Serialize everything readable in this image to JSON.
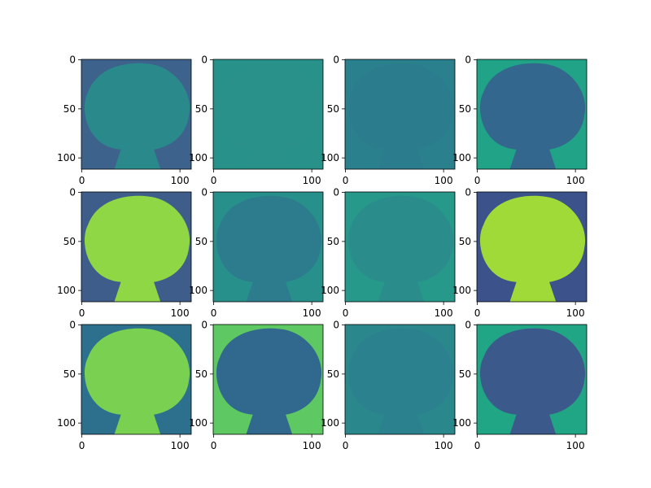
{
  "chart_data": [
    {
      "type": "image",
      "xlim": [
        -0.5,
        111.5
      ],
      "ylim": [
        111.5,
        -0.5
      ],
      "xticks": [
        0,
        100
      ],
      "yticks": [
        0,
        50,
        100
      ],
      "background": "#3d638c",
      "color": "#2a8a8b"
    },
    {
      "type": "image",
      "xlim": [
        -0.5,
        111.5
      ],
      "ylim": [
        111.5,
        -0.5
      ],
      "xticks": [
        0,
        100
      ],
      "yticks": [
        0,
        50,
        100
      ],
      "background": "#28928a",
      "color": "#2a918a"
    },
    {
      "type": "image",
      "xlim": [
        -0.5,
        111.5
      ],
      "ylim": [
        111.5,
        -0.5
      ],
      "xticks": [
        0,
        100
      ],
      "yticks": [
        0,
        50,
        100
      ],
      "background": "#2b808e",
      "color": "#2b7d8e"
    },
    {
      "type": "image",
      "xlim": [
        -0.5,
        111.5
      ],
      "ylim": [
        111.5,
        -0.5
      ],
      "xticks": [
        0,
        100
      ],
      "yticks": [
        0,
        50,
        100
      ],
      "background": "#20a386",
      "color": "#33678d"
    },
    {
      "type": "image",
      "xlim": [
        -0.5,
        111.5
      ],
      "ylim": [
        111.5,
        -0.5
      ],
      "xticks": [
        0,
        100
      ],
      "yticks": [
        0,
        50,
        100
      ],
      "background": "#3e5d8b",
      "color": "#8fd744"
    },
    {
      "type": "image",
      "xlim": [
        -0.5,
        111.5
      ],
      "ylim": [
        111.5,
        -0.5
      ],
      "xticks": [
        0,
        100
      ],
      "yticks": [
        0,
        50,
        100
      ],
      "background": "#28908b",
      "color": "#2c7c8e"
    },
    {
      "type": "image",
      "xlim": [
        -0.5,
        111.5
      ],
      "ylim": [
        111.5,
        -0.5
      ],
      "xticks": [
        0,
        100
      ],
      "yticks": [
        0,
        50,
        100
      ],
      "background": "#26998a",
      "color": "#2a8d8c"
    },
    {
      "type": "image",
      "xlim": [
        -0.5,
        111.5
      ],
      "ylim": [
        111.5,
        -0.5
      ],
      "xticks": [
        0,
        100
      ],
      "yticks": [
        0,
        50,
        100
      ],
      "background": "#3b528b",
      "color": "#a0da39"
    },
    {
      "type": "image",
      "xlim": [
        -0.5,
        111.5
      ],
      "ylim": [
        111.5,
        -0.5
      ],
      "xticks": [
        0,
        100
      ],
      "yticks": [
        0,
        50,
        100
      ],
      "background": "#2d708e",
      "color": "#7ad151"
    },
    {
      "type": "image",
      "xlim": [
        -0.5,
        111.5
      ],
      "ylim": [
        111.5,
        -0.5
      ],
      "xticks": [
        0,
        100
      ],
      "yticks": [
        0,
        50,
        100
      ],
      "background": "#5ec962",
      "color": "#31688e"
    },
    {
      "type": "image",
      "xlim": [
        -0.5,
        111.5
      ],
      "ylim": [
        111.5,
        -0.5
      ],
      "xticks": [
        0,
        100
      ],
      "yticks": [
        0,
        50,
        100
      ],
      "background": "#2a888c",
      "color": "#2b818e"
    },
    {
      "type": "image",
      "xlim": [
        -0.5,
        111.5
      ],
      "ylim": [
        111.5,
        -0.5
      ],
      "xticks": [
        0,
        100
      ],
      "yticks": [
        0,
        50,
        100
      ],
      "background": "#21a685",
      "color": "#3b5a8b"
    }
  ]
}
